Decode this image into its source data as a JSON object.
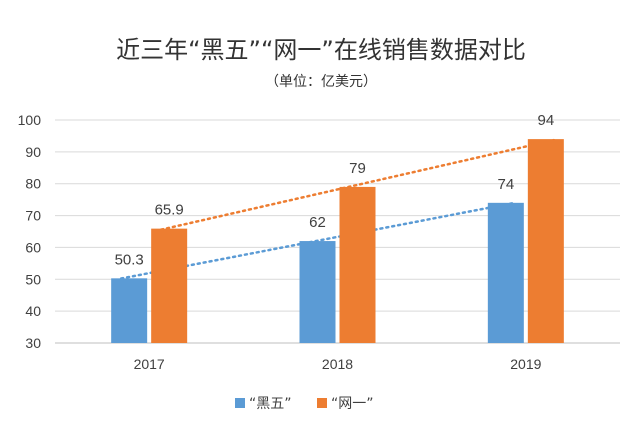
{
  "chart_data": {
    "type": "bar",
    "title": "近三年“黑五”“网一”在线销售数据对比",
    "subtitle": "（单位：亿美元）",
    "categories": [
      "2017",
      "2018",
      "2019"
    ],
    "series": [
      {
        "name": "“黑五”",
        "values": [
          50.3,
          62,
          74
        ],
        "color": "#5B9BD5",
        "trendline": "linear"
      },
      {
        "name": "“网一”",
        "values": [
          65.9,
          79,
          94
        ],
        "color": "#ED7D31",
        "trendline": "linear"
      }
    ],
    "data_labels": true,
    "ylim": [
      30,
      100
    ],
    "yticks": [
      30,
      40,
      50,
      60,
      70,
      80,
      90,
      100
    ],
    "grid": true,
    "legend_position": "bottom"
  }
}
